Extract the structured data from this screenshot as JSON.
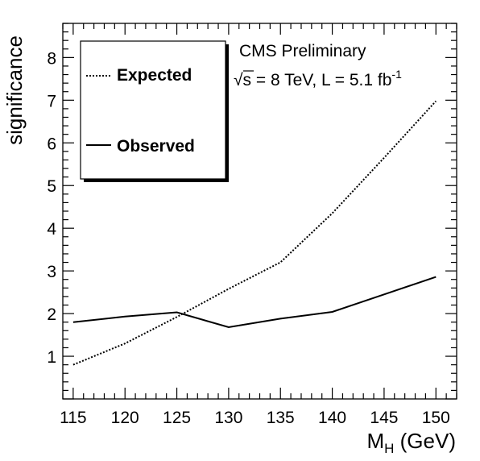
{
  "chart_data": {
    "type": "line",
    "title": "",
    "xlabel": "M",
    "xlabel_sub": "H",
    "xlabel_unit": " (GeV)",
    "ylabel": "significance",
    "xlim": [
      114,
      152
    ],
    "ylim": [
      0,
      8.8
    ],
    "x_ticks": [
      115,
      120,
      125,
      130,
      135,
      140,
      145,
      150
    ],
    "y_ticks": [
      1,
      2,
      3,
      4,
      5,
      6,
      7,
      8
    ],
    "grid": false,
    "legend_position": "top-left",
    "x": [
      115,
      120,
      125,
      130,
      135,
      140,
      145,
      150
    ],
    "series": [
      {
        "name": "Expected",
        "style": "dotted",
        "color": "#000000",
        "values": [
          0.8,
          1.3,
          1.92,
          2.58,
          3.2,
          4.35,
          5.65,
          6.98
        ]
      },
      {
        "name": "Observed",
        "style": "solid",
        "color": "#000000",
        "values": [
          1.8,
          1.93,
          2.03,
          1.68,
          1.88,
          2.04,
          2.45,
          2.86
        ]
      }
    ],
    "annotation": {
      "experiment": "CMS Preliminary",
      "sqrt": "√",
      "energy_var": "s",
      "energy_rest": " = 8 TeV, L = 5.1 fb",
      "lumi_exp": "-1"
    }
  }
}
